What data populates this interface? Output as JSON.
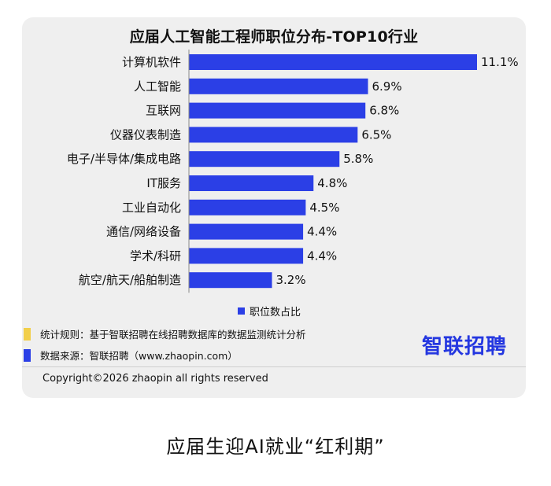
{
  "chart_data": {
    "type": "bar",
    "orientation": "horizontal",
    "title": "应届人工智能工程师职位分布-TOP10行业",
    "categories": [
      "计算机软件",
      "人工智能",
      "互联网",
      "仪器仪表制造",
      "电子/半导体/集成电路",
      "IT服务",
      "工业自动化",
      "通信/网络设备",
      "学术/科研",
      "航空/航天/船舶制造"
    ],
    "series": [
      {
        "name": "职位数占比",
        "values": [
          11.1,
          6.9,
          6.8,
          6.5,
          5.8,
          4.8,
          4.5,
          4.4,
          4.4,
          3.2
        ],
        "value_labels": [
          "11.1%",
          "6.9%",
          "6.8%",
          "6.5%",
          "5.8%",
          "4.8%",
          "4.5%",
          "4.4%",
          "4.4%",
          "3.2%"
        ]
      }
    ],
    "xlim": [
      0,
      11.1
    ],
    "grid": false,
    "legend": "bottom-center",
    "bar_color": "#2b3fe6"
  },
  "notes": {
    "rule": "统计规则：基于智联招聘在线招聘数据库的数据监测统计分析",
    "source": "数据来源：智联招聘（www.zhaopin.com）",
    "rule_marker_color": "#f2cf4a",
    "source_marker_color": "#2b3fe6"
  },
  "logo": {
    "text": "智联招聘",
    "color": "#2437e0"
  },
  "copyright": "Copyright©2026 zhaopin all rights reserved",
  "caption": "应届生迎AI就业“红利期”"
}
